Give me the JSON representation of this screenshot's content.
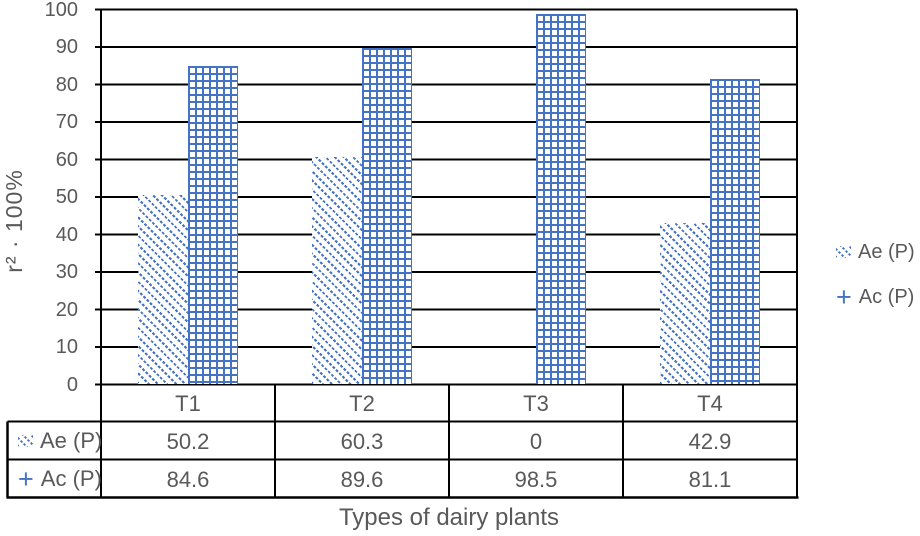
{
  "chart_data": {
    "type": "bar",
    "title": "",
    "xlabel": "Types of dairy plants",
    "ylabel": "r² · 100%",
    "categories": [
      "T1",
      "T2",
      "T3",
      "T4"
    ],
    "series": [
      {
        "name": "Ae (P)",
        "values": [
          50.2,
          60.3,
          0,
          42.9
        ],
        "pattern": "diagonal-hatch"
      },
      {
        "name": "Ac (P)",
        "values": [
          84.6,
          89.6,
          98.5,
          81.1
        ],
        "pattern": "grid-hatch"
      }
    ],
    "ylim": [
      0,
      100
    ],
    "yticks": [
      100,
      90,
      80,
      70,
      60,
      50,
      40,
      30,
      20,
      10,
      0
    ],
    "grid": true,
    "legend_position": "right",
    "data_table_shown": true
  },
  "legend": {
    "items": [
      {
        "label": "Ae (P)",
        "key": "diagonal-swatch"
      },
      {
        "label": "Ac (P)",
        "key": "plus-marker"
      }
    ]
  },
  "icons": {
    "plus_marker_glyph": "+"
  },
  "colors": {
    "accent_blue": "#4472C4",
    "line_black": "#000000",
    "text_gray": "#595959",
    "background": "#ffffff"
  }
}
